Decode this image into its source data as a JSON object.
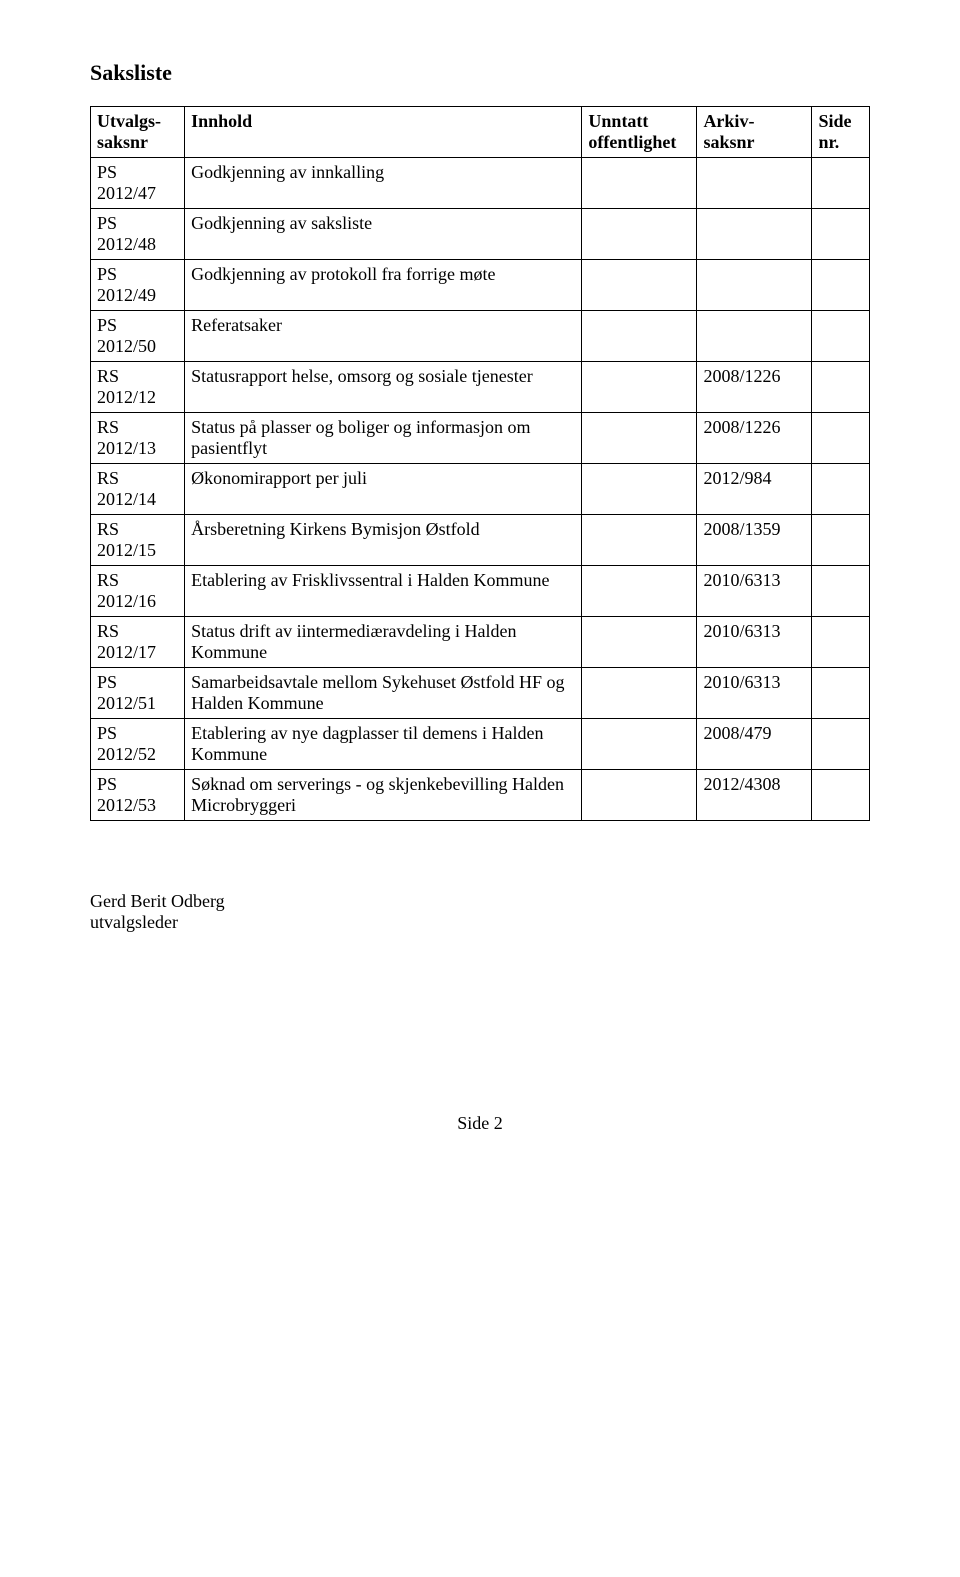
{
  "title": "Saksliste",
  "table": {
    "headers": {
      "c1a": "Utvalgs-",
      "c1b": "saksnr",
      "c2": "Innhold",
      "c3a": "Unntatt",
      "c3b": "offentlighet",
      "c4a": "Arkiv-",
      "c4b": "saksnr",
      "c5a": "Side",
      "c5b": "nr."
    },
    "rows": [
      {
        "saksnr_a": "PS",
        "saksnr_b": "2012/47",
        "innhold": "Godkjenning av innkalling",
        "unntatt": "",
        "arkiv": "",
        "side": ""
      },
      {
        "saksnr_a": "PS",
        "saksnr_b": "2012/48",
        "innhold": "Godkjenning av saksliste",
        "unntatt": "",
        "arkiv": "",
        "side": ""
      },
      {
        "saksnr_a": "PS",
        "saksnr_b": "2012/49",
        "innhold": "Godkjenning av protokoll fra forrige møte",
        "unntatt": "",
        "arkiv": "",
        "side": ""
      },
      {
        "saksnr_a": "PS",
        "saksnr_b": "2012/50",
        "innhold": "Referatsaker",
        "unntatt": "",
        "arkiv": "",
        "side": ""
      },
      {
        "saksnr_a": "RS",
        "saksnr_b": "2012/12",
        "innhold": "Statusrapport helse, omsorg og sosiale tjenester",
        "unntatt": "",
        "arkiv": "2008/1226",
        "side": ""
      },
      {
        "saksnr_a": "RS",
        "saksnr_b": "2012/13",
        "innhold": "Status på plasser og boliger og informasjon om pasientflyt",
        "unntatt": "",
        "arkiv": "2008/1226",
        "side": ""
      },
      {
        "saksnr_a": "RS",
        "saksnr_b": "2012/14",
        "innhold": "Økonomirapport per juli",
        "unntatt": "",
        "arkiv": "2012/984",
        "side": ""
      },
      {
        "saksnr_a": "RS",
        "saksnr_b": "2012/15",
        "innhold": "Årsberetning Kirkens Bymisjon Østfold",
        "unntatt": "",
        "arkiv": "2008/1359",
        "side": ""
      },
      {
        "saksnr_a": "RS",
        "saksnr_b": "2012/16",
        "innhold": "Etablering av Frisklivssentral i Halden Kommune",
        "unntatt": "",
        "arkiv": "2010/6313",
        "side": ""
      },
      {
        "saksnr_a": "RS",
        "saksnr_b": "2012/17",
        "innhold": "Status drift av iintermediæravdeling i Halden Kommune",
        "unntatt": "",
        "arkiv": "2010/6313",
        "side": ""
      },
      {
        "saksnr_a": "PS",
        "saksnr_b": "2012/51",
        "innhold": "Samarbeidsavtale mellom Sykehuset Østfold HF og Halden Kommune",
        "unntatt": "",
        "arkiv": "2010/6313",
        "side": ""
      },
      {
        "saksnr_a": "PS",
        "saksnr_b": "2012/52",
        "innhold": "Etablering av nye dagplasser til demens i Halden Kommune",
        "unntatt": "",
        "arkiv": "2008/479",
        "side": ""
      },
      {
        "saksnr_a": "PS",
        "saksnr_b": "2012/53",
        "innhold": "Søknad om serverings - og skjenkebevilling Halden Microbryggeri",
        "unntatt": "",
        "arkiv": "2012/4308",
        "side": ""
      }
    ]
  },
  "signature": {
    "name": "Gerd Berit Odberg",
    "role": "utvalgsleder"
  },
  "footer": "Side 2"
}
